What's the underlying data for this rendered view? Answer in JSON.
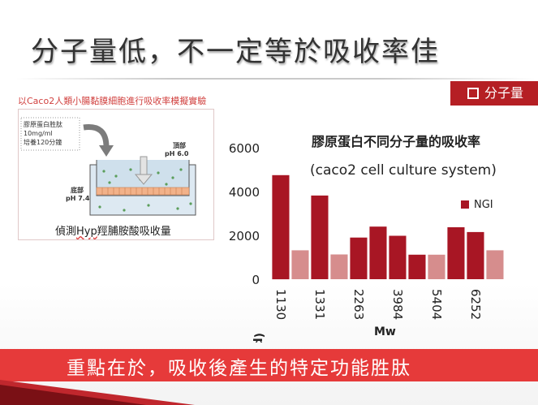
{
  "slide": {
    "title": "分子量低，不一定等於吸收率佳",
    "tag_label": "分子量",
    "subtitle": "以Caco2人類小腸黏膜細胞進行吸收率模擬實驗",
    "bottom_banner": "重點在於，吸收後產生的特定功能胜肽",
    "colors": {
      "accent": "#b51f24",
      "banner": "#e63a3a",
      "bar_dark": "#a81624",
      "bar_light": "#d68d8d"
    }
  },
  "diagram": {
    "sample_lines": [
      "膠原蛋白胜肽",
      "10mg/ml",
      "培養120分鐘"
    ],
    "top_label": "頂部",
    "top_ph": "pH 6.0",
    "bottom_label": "底部",
    "bottom_ph": "pH 7.4",
    "caption_pre": "偵測",
    "caption_hyp": "Hyp",
    "caption_post": "羥脯胺酸吸收量"
  },
  "chart_data": {
    "type": "bar",
    "title": "膠原蛋白不同分子量的吸收率",
    "subtitle": "(caco2 cell culture system)",
    "xlabel": "Mw",
    "ylabel": "(ppm)",
    "ylim": [
      0,
      6000
    ],
    "yticks": [
      0,
      2000,
      4000,
      6000
    ],
    "grid": false,
    "legend_position": "right",
    "x_tick_labels": [
      "1130",
      "1331",
      "2263",
      "3984",
      "5404",
      "6252"
    ],
    "series": [
      {
        "name": "NGI",
        "values": [
          4750,
          3820,
          1900,
          2400,
          1980,
          1120,
          2370,
          2150
        ]
      },
      {
        "values": [
          1320,
          1130,
          1120,
          1320
        ]
      }
    ],
    "bars": [
      {
        "value": 4750,
        "series": 0
      },
      {
        "value": 1320,
        "series": 1
      },
      {
        "value": 3820,
        "series": 0
      },
      {
        "value": 1130,
        "series": 1
      },
      {
        "value": 1900,
        "series": 0
      },
      {
        "value": 2400,
        "series": 0
      },
      {
        "value": 1980,
        "series": 0
      },
      {
        "value": 1120,
        "series": 0
      },
      {
        "value": 1120,
        "series": 1
      },
      {
        "value": 2370,
        "series": 0
      },
      {
        "value": 2150,
        "series": 0
      },
      {
        "value": 1320,
        "series": 1
      }
    ]
  }
}
